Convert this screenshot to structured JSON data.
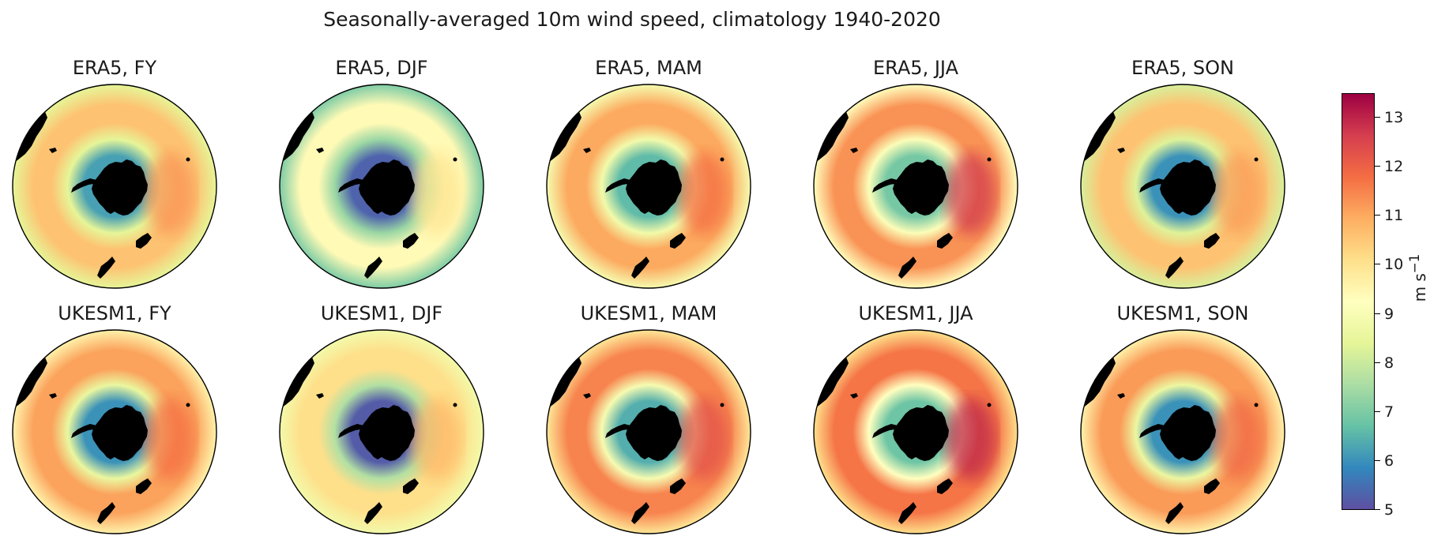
{
  "chart_data": {
    "type": "heatmap",
    "title": "Seasonally-averaged 10m wind speed, climatology 1940-2020",
    "projection": "south polar stereographic, circular boundary",
    "colormap": "Spectral_r",
    "grid": false,
    "colorbar": {
      "label": "m s",
      "label_superscript": "−1",
      "range": [
        5,
        13.5
      ],
      "ticks": [
        5,
        6,
        7,
        8,
        9,
        10,
        11,
        12,
        13
      ],
      "tick_labels": [
        "5",
        "6",
        "7",
        "8",
        "9",
        "10",
        "11",
        "12",
        "13"
      ],
      "position": "right"
    },
    "panels": [
      {
        "title": "ERA5, FY",
        "coast_wind": 6.2,
        "belt_wind": 10.6,
        "peak_wind": 11.3,
        "north_wind": 8.4
      },
      {
        "title": "ERA5, DJF",
        "coast_wind": 5.3,
        "belt_wind": 9.4,
        "peak_wind": 10.0,
        "north_wind": 7.0
      },
      {
        "title": "ERA5, MAM",
        "coast_wind": 6.6,
        "belt_wind": 11.0,
        "peak_wind": 11.8,
        "north_wind": 8.9
      },
      {
        "title": "ERA5, JJA",
        "coast_wind": 6.9,
        "belt_wind": 11.3,
        "peak_wind": 12.7,
        "north_wind": 9.3
      },
      {
        "title": "ERA5, SON",
        "coast_wind": 6.0,
        "belt_wind": 10.6,
        "peak_wind": 11.2,
        "north_wind": 8.2
      },
      {
        "title": "UKESM1, FY",
        "coast_wind": 6.0,
        "belt_wind": 11.1,
        "peak_wind": 11.8,
        "north_wind": 9.6
      },
      {
        "title": "UKESM1, DJF",
        "coast_wind": 5.2,
        "belt_wind": 10.1,
        "peak_wind": 10.8,
        "north_wind": 8.8
      },
      {
        "title": "UKESM1, MAM",
        "coast_wind": 6.4,
        "belt_wind": 11.5,
        "peak_wind": 12.3,
        "north_wind": 9.9
      },
      {
        "title": "UKESM1, JJA",
        "coast_wind": 6.8,
        "belt_wind": 11.7,
        "peak_wind": 13.0,
        "north_wind": 10.1
      },
      {
        "title": "UKESM1, SON",
        "coast_wind": 6.0,
        "belt_wind": 11.2,
        "peak_wind": 11.9,
        "north_wind": 9.6
      }
    ]
  }
}
